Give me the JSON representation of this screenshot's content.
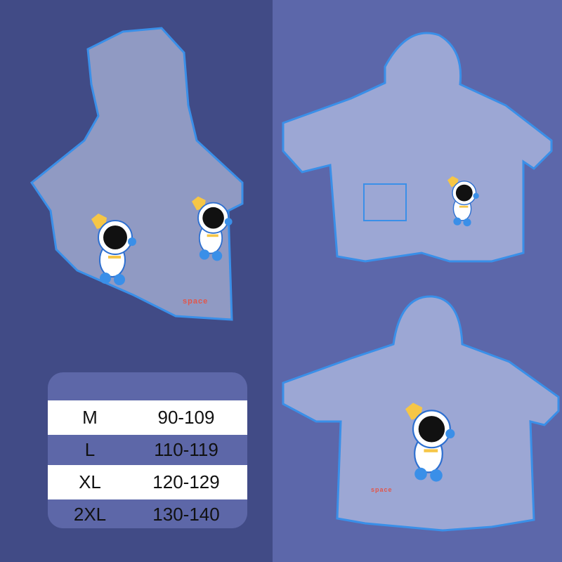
{
  "colors": {
    "background_left": "#414b86",
    "background_right": "#5c67aa",
    "coat_outline": "#3a8fe8",
    "star": "#f6c646"
  },
  "coat_print_text": "space",
  "size_table": {
    "rows": [
      {
        "size": "M",
        "range": "90-109"
      },
      {
        "size": "L",
        "range": "110-119"
      },
      {
        "size": "XL",
        "range": "120-129"
      },
      {
        "size": "2XL",
        "range": "130-140"
      }
    ]
  }
}
